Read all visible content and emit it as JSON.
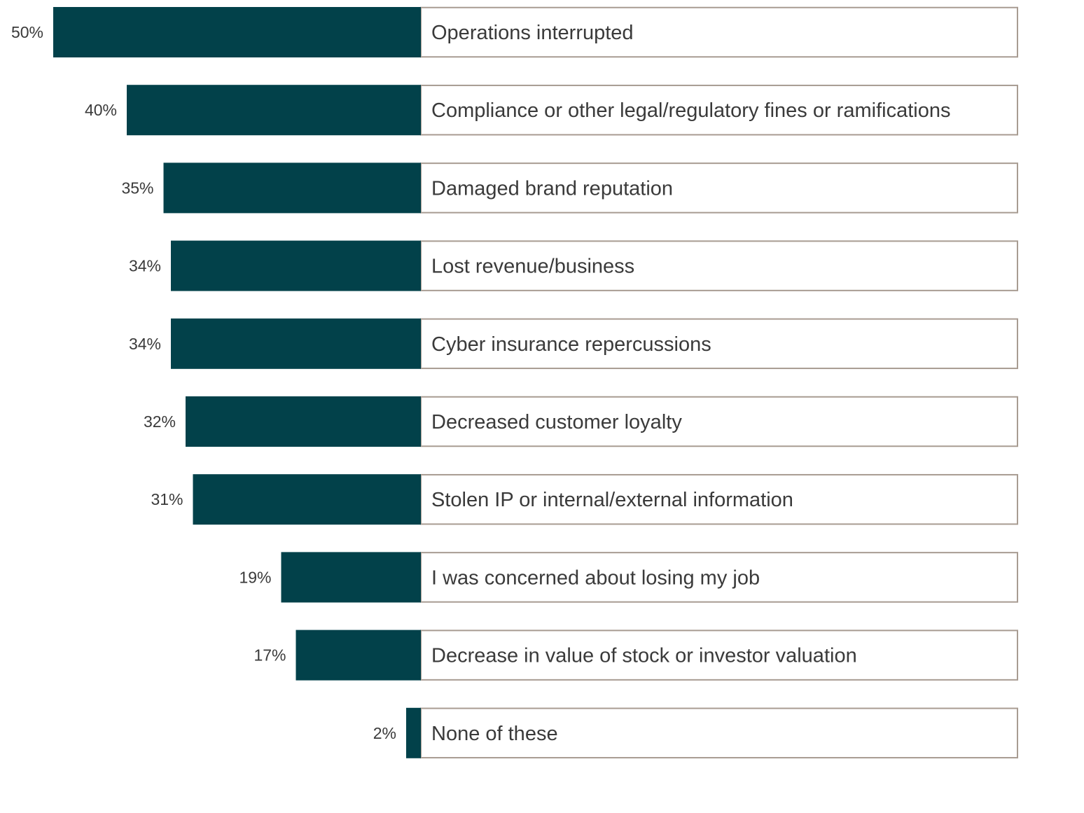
{
  "chart_data": {
    "type": "bar",
    "orientation": "horizontal",
    "categories": [
      "Operations interrupted",
      "Compliance or other legal/regulatory fines or ramifications",
      "Damaged brand reputation",
      "Lost revenue/business",
      "Cyber insurance repercussions",
      "Decreased customer loyalty",
      "Stolen IP or internal/external information",
      "I was concerned about losing my job",
      "Decrease in value of stock or investor valuation",
      "None of these"
    ],
    "values": [
      50,
      40,
      35,
      34,
      34,
      32,
      31,
      19,
      17,
      2
    ],
    "value_labels": [
      "50%",
      "40%",
      "35%",
      "34%",
      "34%",
      "32%",
      "31%",
      "19%",
      "17%",
      "2%"
    ],
    "unit": "%",
    "xlim": [
      0,
      50
    ],
    "grid": false,
    "legend": "none",
    "title": "",
    "xlabel": "",
    "ylabel": ""
  },
  "colors": {
    "bar": "#02414a",
    "label_box_border": "#a89c92",
    "label_box_fill": "#ffffff",
    "text": "#3a3a3a"
  }
}
